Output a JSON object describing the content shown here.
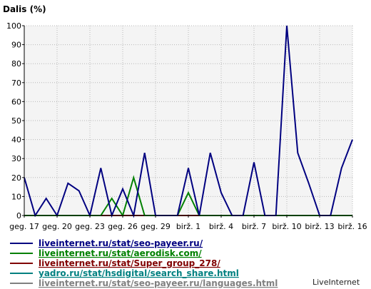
{
  "chart_data": {
    "type": "line",
    "ylabel": "Dalis (%)",
    "ylim": [
      0,
      100
    ],
    "yticks": [
      0,
      10,
      20,
      30,
      40,
      50,
      60,
      70,
      80,
      90,
      100
    ],
    "grid": true,
    "x_count": 31,
    "xtick_labels": [
      {
        "index": 0,
        "label": "geg. 17"
      },
      {
        "index": 3,
        "label": "geg. 20"
      },
      {
        "index": 6,
        "label": "geg. 23"
      },
      {
        "index": 9,
        "label": "geg. 26"
      },
      {
        "index": 12,
        "label": "geg. 29"
      },
      {
        "index": 15,
        "label": "birž. 1"
      },
      {
        "index": 18,
        "label": "birž. 4"
      },
      {
        "index": 21,
        "label": "birž. 7"
      },
      {
        "index": 24,
        "label": "birž. 10"
      },
      {
        "index": 27,
        "label": "birž. 13"
      },
      {
        "index": 30,
        "label": "birž. 16"
      }
    ],
    "series": [
      {
        "name": "liveinternet.ru/stat/seo-payeer.ru/",
        "color": "#000080",
        "values": [
          20,
          0,
          9,
          0,
          17,
          13,
          0,
          25,
          0,
          14,
          0,
          33,
          0,
          0,
          0,
          25,
          0,
          33,
          12,
          0,
          0,
          28,
          0,
          0,
          100,
          33,
          17,
          0,
          0,
          25,
          40
        ]
      },
      {
        "name": "liveinternet.ru/stat/aerodisk.com/",
        "color": "#008000",
        "values": [
          0,
          0,
          0,
          0,
          0,
          0,
          0,
          0,
          9,
          0,
          20,
          0,
          0,
          0,
          0,
          12,
          0,
          0,
          0,
          0,
          0,
          0,
          0,
          0,
          0,
          0,
          0,
          0,
          0,
          0,
          0
        ]
      },
      {
        "name": "liveinternet.ru/stat/Super_group_278/",
        "color": "#800000",
        "values": [
          0,
          0,
          0,
          0,
          0,
          0,
          0,
          0,
          0,
          0,
          0,
          0,
          0,
          0,
          0,
          0,
          0,
          0,
          0,
          0,
          0,
          0,
          0,
          0,
          0,
          0,
          0,
          0,
          0,
          0,
          0
        ]
      },
      {
        "name": "yadro.ru/stat/hsdigital/search_share.html",
        "color": "#008080",
        "values": [
          0,
          0,
          0,
          0,
          0,
          0,
          0,
          0,
          0,
          0,
          0,
          0,
          0,
          0,
          0,
          0,
          0,
          0,
          0,
          0,
          0,
          0,
          0,
          0,
          0,
          0,
          0,
          0,
          0,
          0,
          0
        ]
      },
      {
        "name": "liveinternet.ru/stat/seo-payeer.ru/languages.html",
        "color": "#808080",
        "values": [
          0,
          0,
          0,
          0,
          0,
          0,
          0,
          0,
          0,
          0,
          0,
          0,
          0,
          0,
          0,
          0,
          0,
          0,
          0,
          0,
          0,
          0,
          0,
          0,
          0,
          0,
          0,
          0,
          0,
          0,
          0
        ]
      }
    ]
  },
  "branding": {
    "label": "LiveInternet"
  }
}
